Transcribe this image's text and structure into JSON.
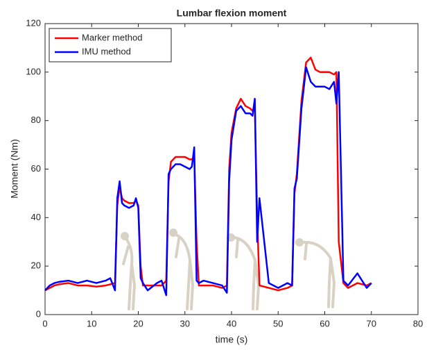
{
  "chart_data": {
    "type": "line",
    "title": "Lumbar flexion moment",
    "xlabel": "time (s)",
    "ylabel": "Moment (Nm)",
    "x": [
      0,
      1,
      2,
      3,
      5,
      7,
      9,
      11,
      13,
      14,
      15,
      15.5,
      16,
      16.5,
      17,
      18,
      19,
      19.5,
      20,
      20.5,
      21,
      22,
      24,
      25,
      26,
      26.5,
      27,
      28,
      29,
      30,
      31,
      31.5,
      32,
      32.5,
      33,
      34,
      36,
      38,
      39,
      39.5,
      40,
      41,
      42,
      43,
      44,
      44.5,
      45,
      45.5,
      46,
      48,
      50,
      52,
      53,
      53.5,
      54,
      55,
      56,
      57,
      58,
      59,
      60,
      61,
      62,
      62.5,
      63,
      64,
      65,
      67,
      69,
      70
    ],
    "series": [
      {
        "name": "Marker method",
        "color": "#ff0000",
        "values": [
          10,
          11,
          12,
          12.5,
          13,
          12,
          12,
          11.5,
          12,
          12.5,
          13,
          45,
          53,
          48,
          47,
          46,
          46,
          47,
          45,
          20,
          12,
          12,
          12,
          12,
          14,
          55,
          63,
          65,
          65,
          65,
          64,
          64,
          65,
          30,
          12,
          12,
          12,
          11,
          12,
          60,
          75,
          85,
          89,
          86,
          85,
          84,
          86,
          40,
          12,
          11,
          10,
          11,
          12,
          50,
          58,
          88,
          104,
          106,
          101,
          100,
          100,
          100,
          99,
          100,
          30,
          13,
          11,
          13,
          12,
          13
        ]
      },
      {
        "name": "IMU method",
        "color": "#0000ff",
        "values": [
          10,
          12,
          13,
          13.5,
          14,
          13,
          14,
          13,
          14,
          15,
          10,
          48,
          55,
          46,
          45,
          44,
          45,
          48,
          44,
          15,
          13,
          10,
          13,
          14,
          8,
          58,
          60,
          62,
          62,
          61,
          60,
          61,
          69,
          14,
          13,
          14,
          13,
          12,
          9,
          55,
          72,
          84,
          86,
          83,
          83,
          82,
          89,
          30,
          48,
          13,
          11,
          13,
          12,
          52,
          56,
          85,
          102,
          96,
          94,
          94,
          94,
          93,
          96,
          87,
          100,
          14,
          12,
          17,
          11,
          13
        ]
      }
    ],
    "xlim": [
      0,
      80
    ],
    "xticks": [
      0,
      10,
      20,
      30,
      40,
      50,
      60,
      70,
      80
    ],
    "ylim": [
      0,
      120
    ],
    "yticks": [
      0,
      20,
      40,
      60,
      80,
      100,
      120
    ],
    "legend": "upper left",
    "grid": false
  }
}
